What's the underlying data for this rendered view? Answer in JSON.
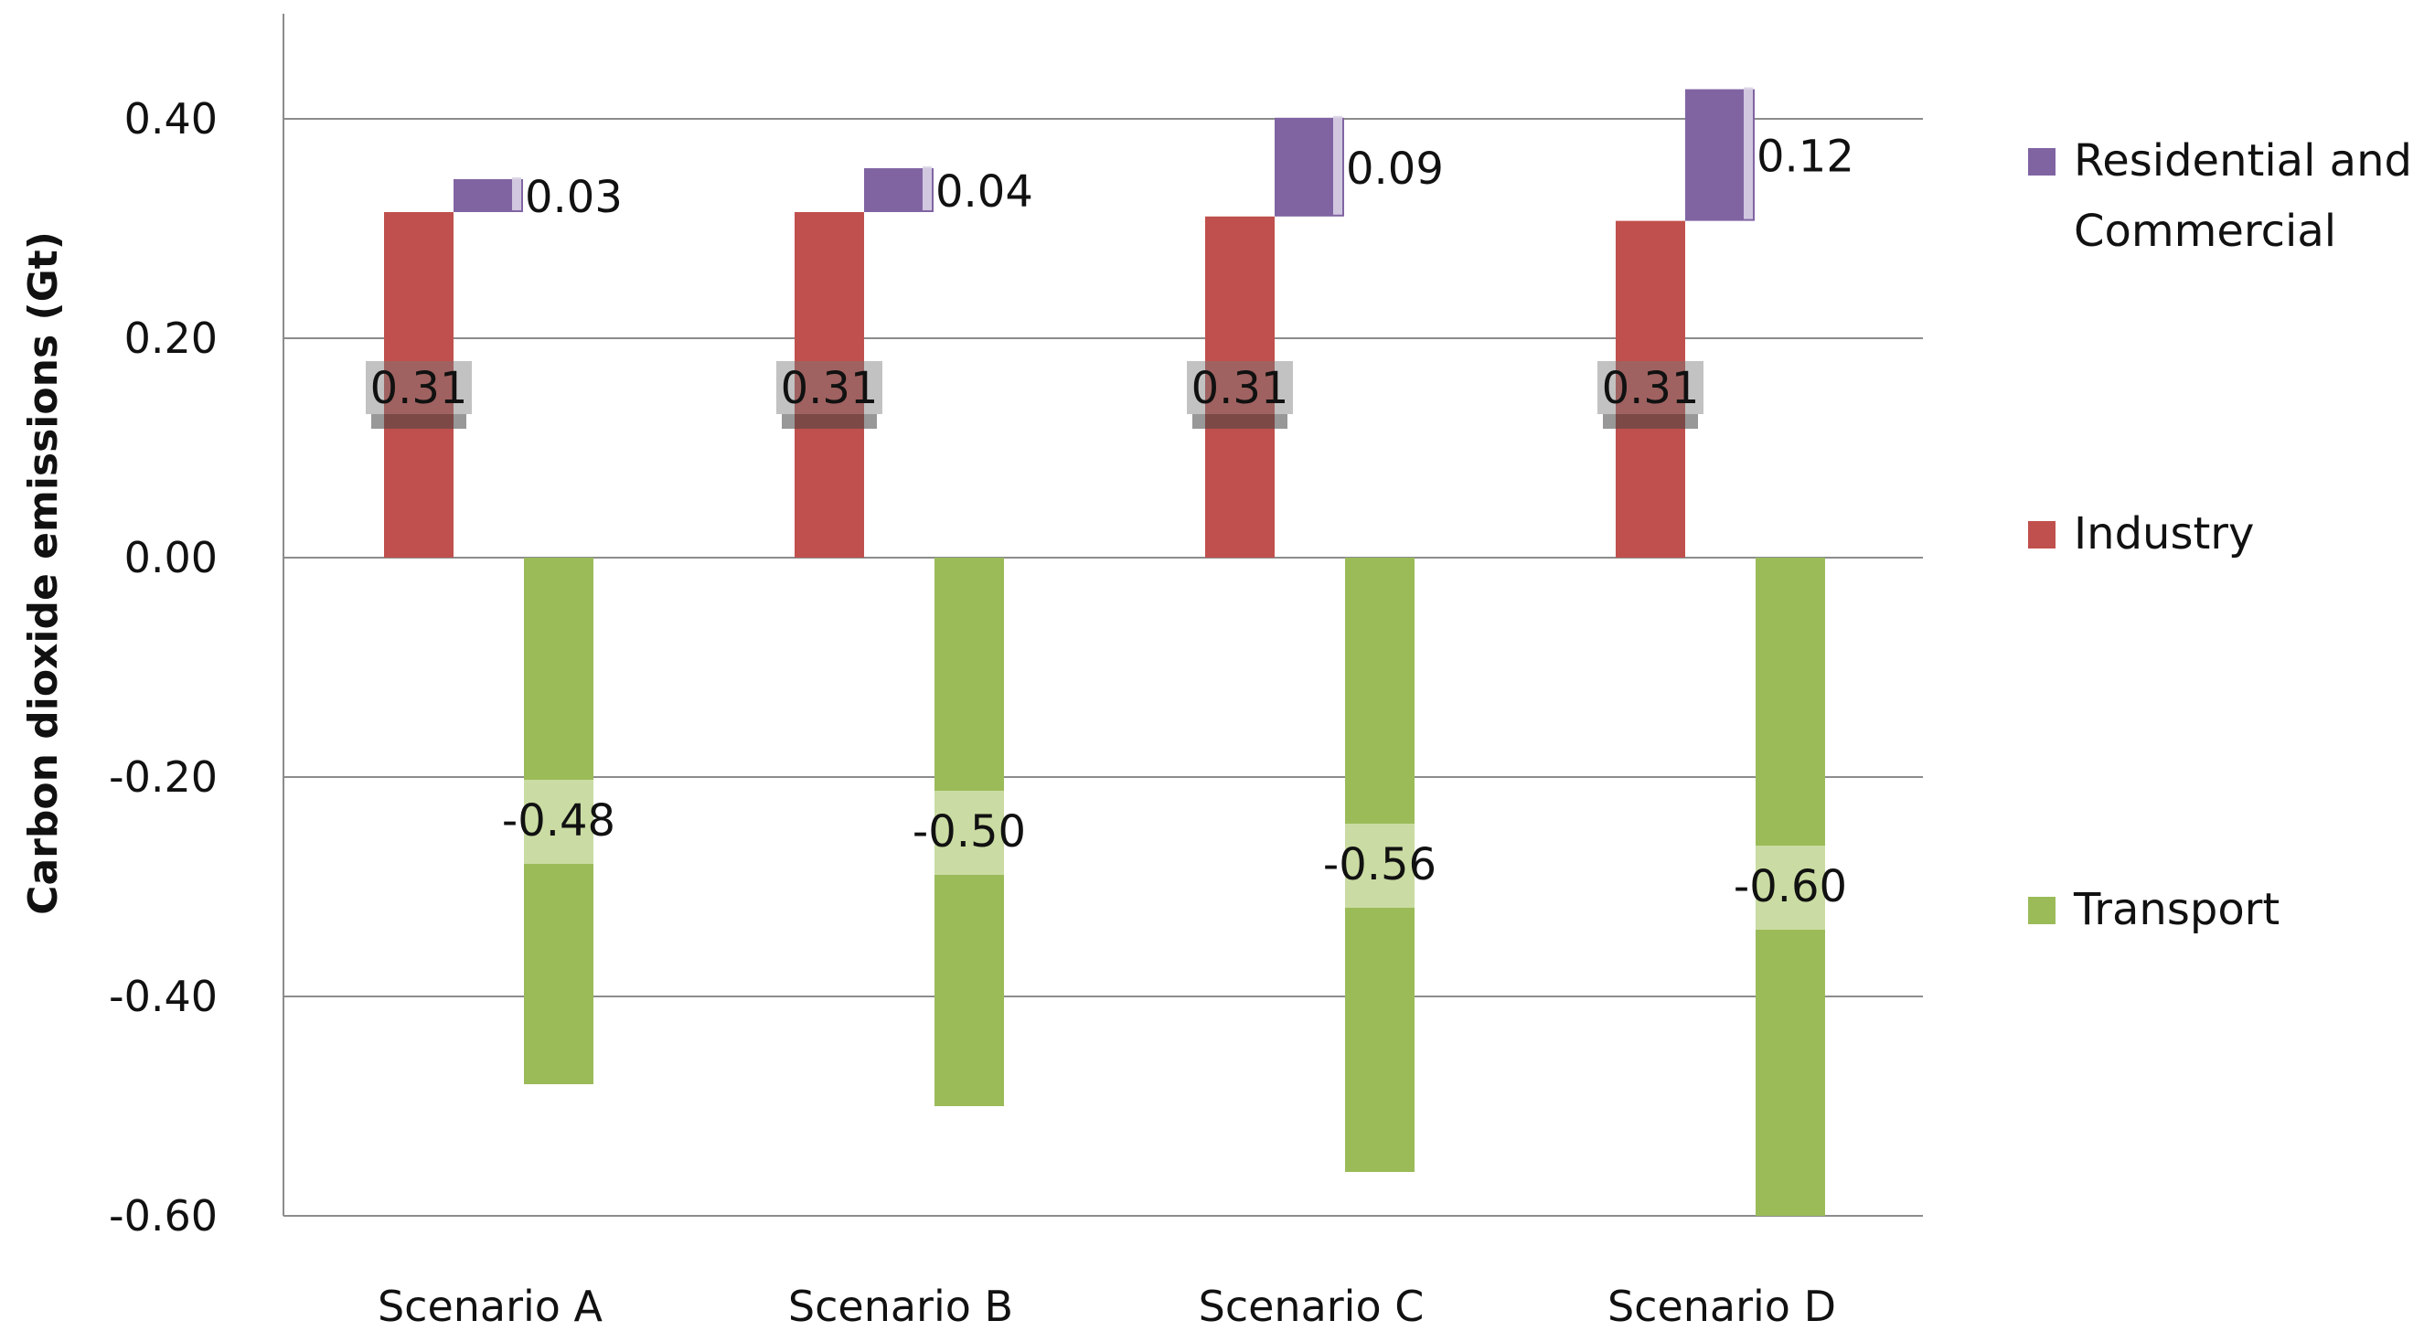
{
  "chart_data": {
    "type": "bar",
    "stacked": true,
    "title": "",
    "xlabel": "",
    "ylabel": "Carbon dioxide emissions (Gt)",
    "ylim": [
      -0.6,
      0.48
    ],
    "yticks": [
      0.4,
      0.2,
      0.0,
      -0.2,
      -0.4,
      -0.6
    ],
    "ytick_labels": [
      "0.40",
      "0.20",
      "0.00",
      "-0.20",
      "-0.40",
      "-0.60"
    ],
    "grid": true,
    "legend_position": "right",
    "categories": [
      "Scenario A",
      "Scenario B",
      "Scenario C",
      "Scenario D"
    ],
    "series": [
      {
        "name": "Residential and Commercial",
        "legend_lines": [
          "Residential and",
          "Commercial"
        ],
        "color": "#8064a2",
        "base": [
          0.315,
          0.315,
          0.311,
          0.307
        ],
        "values": [
          0.03,
          0.04,
          0.09,
          0.12
        ],
        "labels": [
          "0.03",
          "0.04",
          "0.09",
          "0.12"
        ]
      },
      {
        "name": "Industry",
        "legend_lines": [
          "Industry"
        ],
        "color": "#c0504d",
        "base": [
          0,
          0,
          0,
          0
        ],
        "values": [
          0.315,
          0.315,
          0.311,
          0.307
        ],
        "labels": [
          "0.31",
          "0.31",
          "0.31",
          "0.31"
        ]
      },
      {
        "name": "Transport",
        "legend_lines": [
          "Transport"
        ],
        "color": "#9bbb59",
        "base": [
          0,
          0,
          0,
          0
        ],
        "values": [
          -0.48,
          -0.5,
          -0.56,
          -0.6
        ],
        "labels": [
          "-0.48",
          "-0.50",
          "-0.56",
          "-0.60"
        ]
      }
    ]
  }
}
